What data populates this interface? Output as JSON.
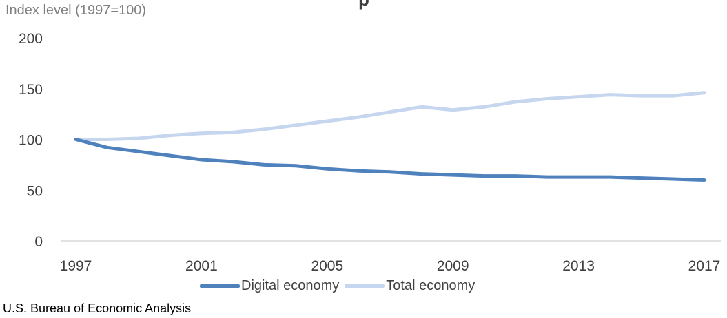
{
  "chart_data": {
    "type": "line",
    "title": "",
    "ylabel": "Index level (1997=100)",
    "xlabel": "",
    "x": [
      1997,
      1998,
      1999,
      2000,
      2001,
      2002,
      2003,
      2004,
      2005,
      2006,
      2007,
      2008,
      2009,
      2010,
      2011,
      2012,
      2013,
      2014,
      2015,
      2016,
      2017
    ],
    "xticks": [
      "1997",
      "2001",
      "2005",
      "2009",
      "2013",
      "2017"
    ],
    "yticks": [
      "0",
      "50",
      "100",
      "150",
      "200"
    ],
    "ylim": [
      0,
      200
    ],
    "grid": false,
    "legend_position": "bottom",
    "series": [
      {
        "name": "Digital economy",
        "color": "#4f81bd",
        "values": [
          100,
          92,
          88,
          84,
          80,
          78,
          75,
          74,
          71,
          69,
          68,
          66,
          65,
          64,
          64,
          63,
          63,
          63,
          62,
          61,
          60
        ]
      },
      {
        "name": "Total economy",
        "color": "#c5d6ee",
        "values": [
          100,
          100,
          101,
          104,
          106,
          107,
          110,
          114,
          118,
          122,
          127,
          132,
          129,
          132,
          137,
          140,
          142,
          144,
          143,
          143,
          146
        ]
      }
    ]
  },
  "header": {
    "title_fragment": "p"
  },
  "source": "U.S. Bureau of Economic Analysis"
}
